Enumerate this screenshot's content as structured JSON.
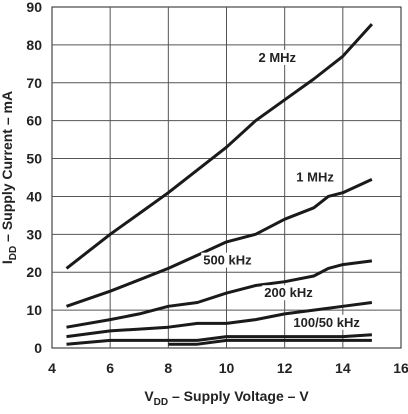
{
  "chart_data": {
    "type": "line",
    "xlabel": "V_DD – Supply Voltage – V",
    "ylabel": "I_DD – Supply Current – mA",
    "xlabel_parts": {
      "main": "V",
      "sub": "DD",
      "rest": " – Supply Voltage – V"
    },
    "ylabel_parts": {
      "main": "I",
      "sub": "DD",
      "rest": " – Supply Current – mA"
    },
    "xlim": [
      4,
      16
    ],
    "ylim": [
      0,
      90
    ],
    "xticks": [
      4,
      6,
      8,
      10,
      12,
      14,
      16
    ],
    "yticks": [
      0,
      10,
      20,
      30,
      40,
      50,
      60,
      70,
      80,
      90
    ],
    "grid": true,
    "legend": "none",
    "line_color": "#1a1a1a",
    "series": [
      {
        "name": "2 MHz",
        "x": [
          4.5,
          6,
          7,
          8,
          9,
          10,
          11,
          12,
          13,
          14,
          15
        ],
        "values": [
          21,
          30,
          35.5,
          41,
          47,
          53,
          60,
          65.5,
          71,
          77,
          85.5
        ]
      },
      {
        "name": "1 MHz",
        "x": [
          4.5,
          6,
          7,
          8,
          9,
          10,
          11,
          12,
          13,
          13.5,
          14,
          15
        ],
        "values": [
          11,
          15,
          18,
          21,
          24.5,
          28,
          30,
          34,
          37,
          40,
          41,
          44.5
        ]
      },
      {
        "name": "500 kHz",
        "x": [
          4.5,
          6,
          7,
          8,
          9,
          10,
          11,
          12,
          13,
          13.5,
          14,
          15
        ],
        "values": [
          5.5,
          7.5,
          9,
          11,
          12,
          14.5,
          16.5,
          17.5,
          19,
          21,
          22,
          23
        ]
      },
      {
        "name": "200 kHz",
        "x": [
          4.5,
          6,
          7,
          8,
          9,
          10,
          11,
          12,
          13,
          14,
          15
        ],
        "values": [
          3,
          4.5,
          5,
          5.5,
          6.5,
          6.5,
          7.5,
          9,
          10,
          11,
          12
        ]
      },
      {
        "name": "100 kHz",
        "x": [
          4.5,
          6,
          8,
          9,
          10,
          12,
          14,
          15
        ],
        "values": [
          1,
          2,
          2,
          2,
          3,
          3,
          3,
          3.5
        ]
      },
      {
        "name": "50 kHz",
        "x": [
          8,
          9,
          10,
          12,
          14,
          15
        ],
        "values": [
          1,
          1,
          2,
          2,
          2,
          2
        ]
      }
    ],
    "annotations": [
      {
        "text": "2 MHz",
        "x": 11.1,
        "y": 75.5
      },
      {
        "text": "1 MHz",
        "x": 12.4,
        "y": 44
      },
      {
        "text": "500 kHz",
        "x": 9.2,
        "y": 22
      },
      {
        "text": "200 kHz",
        "x": 11.3,
        "y": 13.4
      },
      {
        "text": "100/50 kHz",
        "x": 12.3,
        "y": 5.6
      }
    ]
  }
}
